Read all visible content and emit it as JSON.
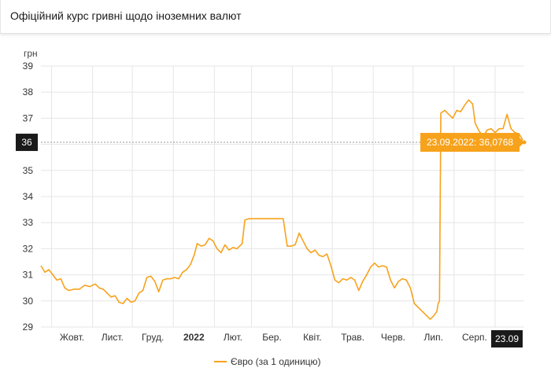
{
  "header": {
    "title": "Офіційний курс гривні щодо іноземних валют"
  },
  "colors": {
    "line": "#f7a21b",
    "tooltip_bg": "#f7a21b",
    "badge_bg": "#1a1a1a",
    "grid": "#e6e6e6"
  },
  "chart_data": {
    "type": "line",
    "title": "",
    "ylabel": "грн",
    "xlabel": "",
    "ylim": [
      29,
      39
    ],
    "yticks": [
      29,
      30,
      31,
      32,
      33,
      34,
      35,
      36,
      37,
      38,
      39
    ],
    "grid": true,
    "legend_position": "bottom-center",
    "x_tick_labels": [
      {
        "label": "Жовт.",
        "bold": false
      },
      {
        "label": "Лист.",
        "bold": false
      },
      {
        "label": "Груд.",
        "bold": false
      },
      {
        "label": "2022",
        "bold": true
      },
      {
        "label": "Лют.",
        "bold": false
      },
      {
        "label": "Бер.",
        "bold": false
      },
      {
        "label": "Квіт.",
        "bold": false
      },
      {
        "label": "Трав.",
        "bold": false
      },
      {
        "label": "Черв.",
        "bold": false
      },
      {
        "label": "Лип.",
        "bold": false
      },
      {
        "label": "Серп.",
        "bold": false
      }
    ],
    "current_x_badge": "23.09",
    "current_y_badge": "36",
    "current_value": 36.0768,
    "tooltip": "23.09.2022: 36,0768",
    "series": [
      {
        "name": "Євро (за 1 одиницю)",
        "points": [
          [
            "2021-09-23",
            31.35
          ],
          [
            "2021-09-26",
            31.1
          ],
          [
            "2021-09-29",
            31.2
          ],
          [
            "2021-10-02",
            31.0
          ],
          [
            "2021-10-05",
            30.8
          ],
          [
            "2021-10-08",
            30.85
          ],
          [
            "2021-10-11",
            30.5
          ],
          [
            "2021-10-14",
            30.4
          ],
          [
            "2021-10-18",
            30.45
          ],
          [
            "2021-10-22",
            30.45
          ],
          [
            "2021-10-26",
            30.6
          ],
          [
            "2021-10-30",
            30.55
          ],
          [
            "2021-11-03",
            30.65
          ],
          [
            "2021-11-06",
            30.5
          ],
          [
            "2021-11-09",
            30.45
          ],
          [
            "2021-11-12",
            30.3
          ],
          [
            "2021-11-15",
            30.15
          ],
          [
            "2021-11-18",
            30.2
          ],
          [
            "2021-11-21",
            29.95
          ],
          [
            "2021-11-24",
            29.9
          ],
          [
            "2021-11-27",
            30.1
          ],
          [
            "2021-11-30",
            29.95
          ],
          [
            "2021-12-03",
            30.0
          ],
          [
            "2021-12-06",
            30.3
          ],
          [
            "2021-12-09",
            30.4
          ],
          [
            "2021-12-12",
            30.9
          ],
          [
            "2021-12-15",
            30.95
          ],
          [
            "2021-12-18",
            30.75
          ],
          [
            "2021-12-21",
            30.35
          ],
          [
            "2021-12-24",
            30.8
          ],
          [
            "2021-12-27",
            30.85
          ],
          [
            "2021-12-30",
            30.85
          ],
          [
            "2022-01-02",
            30.9
          ],
          [
            "2022-01-05",
            30.85
          ],
          [
            "2022-01-08",
            31.1
          ],
          [
            "2022-01-11",
            31.2
          ],
          [
            "2022-01-14",
            31.4
          ],
          [
            "2022-01-17",
            31.8
          ],
          [
            "2022-01-19",
            32.2
          ],
          [
            "2022-01-22",
            32.1
          ],
          [
            "2022-01-25",
            32.15
          ],
          [
            "2022-01-28",
            32.4
          ],
          [
            "2022-01-31",
            32.3
          ],
          [
            "2022-02-03",
            32.0
          ],
          [
            "2022-02-06",
            31.85
          ],
          [
            "2022-02-09",
            32.15
          ],
          [
            "2022-02-12",
            31.95
          ],
          [
            "2022-02-15",
            32.05
          ],
          [
            "2022-02-18",
            32.0
          ],
          [
            "2022-02-22",
            32.2
          ],
          [
            "2022-02-24",
            33.1
          ],
          [
            "2022-02-27",
            33.15
          ],
          [
            "2022-03-05",
            33.15
          ],
          [
            "2022-03-12",
            33.15
          ],
          [
            "2022-03-19",
            33.15
          ],
          [
            "2022-03-25",
            33.15
          ],
          [
            "2022-03-28",
            32.1
          ],
          [
            "2022-03-31",
            32.1
          ],
          [
            "2022-04-03",
            32.15
          ],
          [
            "2022-04-06",
            32.6
          ],
          [
            "2022-04-09",
            32.3
          ],
          [
            "2022-04-12",
            32.0
          ],
          [
            "2022-04-15",
            31.85
          ],
          [
            "2022-04-18",
            31.95
          ],
          [
            "2022-04-21",
            31.75
          ],
          [
            "2022-04-24",
            31.7
          ],
          [
            "2022-04-27",
            31.8
          ],
          [
            "2022-04-30",
            31.35
          ],
          [
            "2022-05-03",
            30.8
          ],
          [
            "2022-05-06",
            30.7
          ],
          [
            "2022-05-09",
            30.85
          ],
          [
            "2022-05-12",
            30.8
          ],
          [
            "2022-05-15",
            30.9
          ],
          [
            "2022-05-18",
            30.8
          ],
          [
            "2022-05-21",
            30.4
          ],
          [
            "2022-05-24",
            30.75
          ],
          [
            "2022-05-27",
            31.0
          ],
          [
            "2022-05-30",
            31.3
          ],
          [
            "2022-06-02",
            31.45
          ],
          [
            "2022-06-05",
            31.3
          ],
          [
            "2022-06-08",
            31.35
          ],
          [
            "2022-06-11",
            31.3
          ],
          [
            "2022-06-14",
            30.8
          ],
          [
            "2022-06-17",
            30.5
          ],
          [
            "2022-06-20",
            30.75
          ],
          [
            "2022-06-23",
            30.85
          ],
          [
            "2022-06-26",
            30.8
          ],
          [
            "2022-06-29",
            30.5
          ],
          [
            "2022-07-02",
            29.9
          ],
          [
            "2022-07-05",
            29.75
          ],
          [
            "2022-07-08",
            29.6
          ],
          [
            "2022-07-11",
            29.45
          ],
          [
            "2022-07-14",
            29.3
          ],
          [
            "2022-07-17",
            29.45
          ],
          [
            "2022-07-19",
            29.6
          ],
          [
            "2022-07-20",
            29.9
          ],
          [
            "2022-07-21",
            30.0
          ],
          [
            "2022-07-22",
            37.2
          ],
          [
            "2022-07-25",
            37.3
          ],
          [
            "2022-07-28",
            37.15
          ],
          [
            "2022-07-31",
            37.0
          ],
          [
            "2022-08-03",
            37.3
          ],
          [
            "2022-08-06",
            37.25
          ],
          [
            "2022-08-09",
            37.5
          ],
          [
            "2022-08-12",
            37.7
          ],
          [
            "2022-08-15",
            37.55
          ],
          [
            "2022-08-17",
            36.8
          ],
          [
            "2022-08-20",
            36.5
          ],
          [
            "2022-08-23",
            36.3
          ],
          [
            "2022-08-26",
            36.55
          ],
          [
            "2022-08-29",
            36.6
          ],
          [
            "2022-09-01",
            36.45
          ],
          [
            "2022-09-04",
            36.6
          ],
          [
            "2022-09-07",
            36.6
          ],
          [
            "2022-09-10",
            37.15
          ],
          [
            "2022-09-13",
            36.6
          ],
          [
            "2022-09-16",
            36.45
          ],
          [
            "2022-09-19",
            36.4
          ],
          [
            "2022-09-23",
            36.0768
          ]
        ]
      }
    ]
  }
}
